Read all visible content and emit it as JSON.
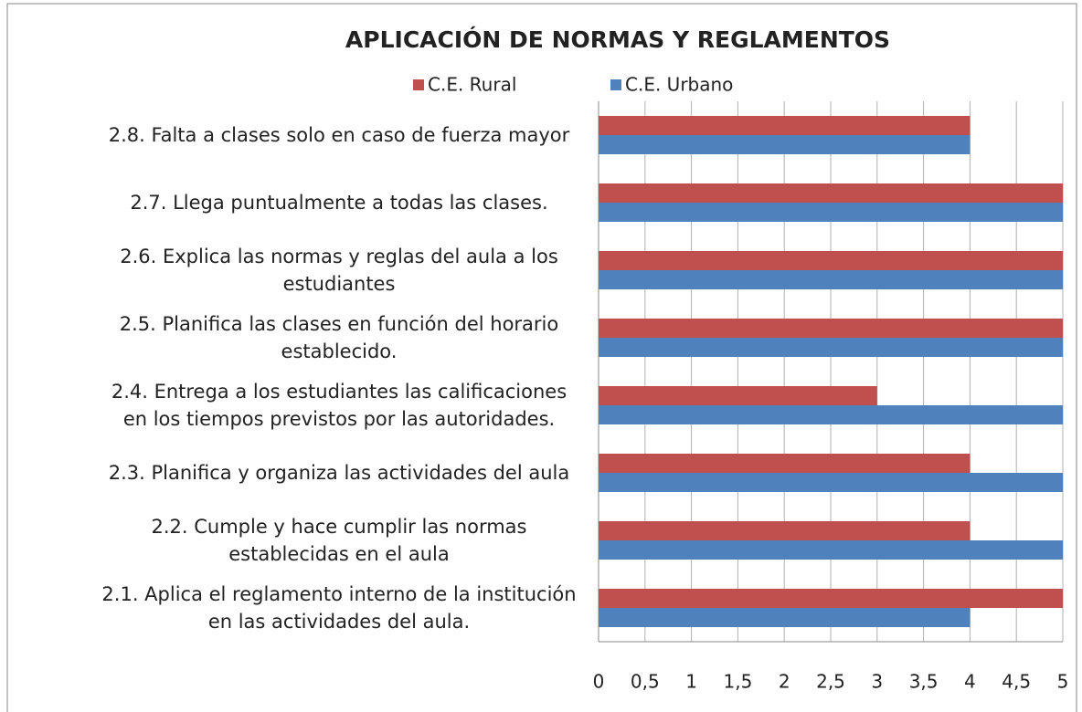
{
  "chart_data": {
    "type": "barh",
    "title": "APLICACIÓN DE NORMAS Y REGLAMENTOS",
    "categories": [
      "2.8.  Falta a  clases solo en caso de fuerza mayor",
      "2.7.  Llega puntualmente a todas las clases.",
      "2.6.  Explica las normas y reglas del aula a los estudiantes",
      "2.5.  Planifica las clases en función del horario establecido.",
      "2.4.  Entrega a los estudiantes las calificaciones en los tiempos previstos por las autoridades.",
      "2.3.  Planifica y organiza las actividades del aula",
      "2.2.  Cumple y hace cumplir  las normas establecidas en el aula",
      "2.1.  Aplica el reglamento interno de la institución en las actividades del aula."
    ],
    "series": [
      {
        "name": "C.E. Rural",
        "color": "#c0504d",
        "values": [
          4,
          5,
          5,
          5,
          3,
          4,
          4,
          5
        ]
      },
      {
        "name": "C.E. Urbano",
        "color": "#4f81bd",
        "values": [
          4,
          5,
          5,
          5,
          5,
          5,
          5,
          4
        ]
      }
    ],
    "xlim": [
      0,
      5
    ],
    "xticks": [
      0,
      {
        "value": 0.5,
        "label": "0,5"
      },
      1,
      {
        "value": 1.5,
        "label": "1,5"
      },
      2,
      {
        "value": 2.5,
        "label": "2,5"
      },
      3,
      {
        "value": 3.5,
        "label": "3,5"
      },
      4,
      {
        "value": 4.5,
        "label": "4,5"
      },
      5
    ],
    "grid": true,
    "legend": "top"
  }
}
